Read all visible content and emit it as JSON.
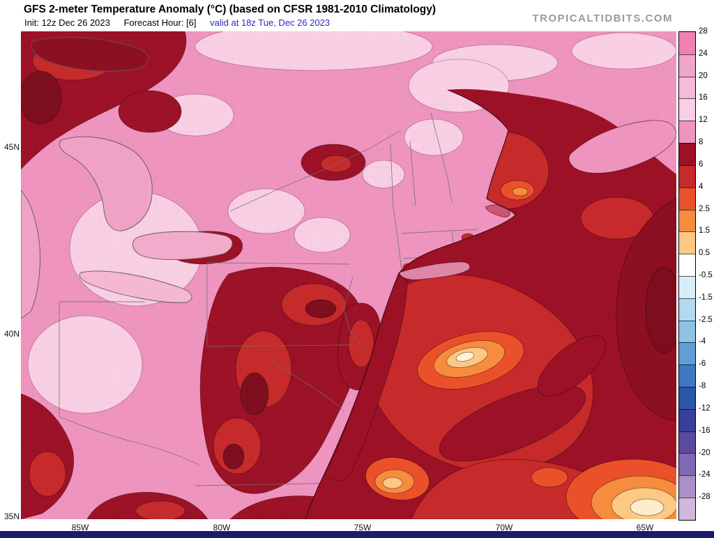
{
  "header": {
    "title": "GFS 2-meter Temperature Anomaly (°C) (based on CFSR 1981-2010 Climatology)",
    "init": "Init: 12z Dec 26 2023",
    "forecast_hour": "Forecast Hour: [6]",
    "valid": "valid at 18z Tue, Dec 26 2023",
    "watermark": "TROPICALTIDBITS.COM"
  },
  "axes": {
    "lat": [
      "45N",
      "40N",
      "35N"
    ],
    "lon": [
      "85W",
      "80W",
      "75W",
      "70W",
      "65W"
    ]
  },
  "colorbar": {
    "labels": [
      "28",
      "24",
      "20",
      "16",
      "12",
      "8",
      "6",
      "4",
      "2.5",
      "1.5",
      "0.5",
      "-0.5",
      "-1.5",
      "-2.5",
      "-4",
      "-6",
      "-8",
      "-12",
      "-16",
      "-20",
      "-24",
      "-28"
    ],
    "cell_colors": [
      "#f180b5",
      "#f0a5ca",
      "#f5bad7",
      "#f9cfe4",
      "#ef94bf",
      "#9c1126",
      "#c62a2a",
      "#ea512b",
      "#f68c3e",
      "#fcc884",
      "#ffffff",
      "#d9edf8",
      "#b3d9f0",
      "#8ec3e8",
      "#5f9fd6",
      "#3c79c2",
      "#2b57ab",
      "#3a409a",
      "#5a4aa0",
      "#8168b4",
      "#ab8fc8",
      "#d0b8dc"
    ]
  },
  "chart_data": {
    "type": "heatmap",
    "title": "GFS 2-meter Temperature Anomaly (°C)",
    "scale_boundaries_c": [
      28,
      24,
      20,
      16,
      12,
      8,
      6,
      4,
      2.5,
      1.5,
      0.5,
      -0.5,
      -1.5,
      -2.5,
      -4,
      -6,
      -8,
      -12,
      -16,
      -20,
      -24,
      -28
    ],
    "lat_range": [
      "35N",
      "45N"
    ],
    "lon_range": [
      "85W",
      "65W"
    ],
    "legend_position": "right"
  },
  "colors": {
    "valid_text": "#2727c8",
    "watermark": "#9a9a9a",
    "footer_bar": "#1c1c6b",
    "land_base_anomaly": "#ef94bf"
  }
}
